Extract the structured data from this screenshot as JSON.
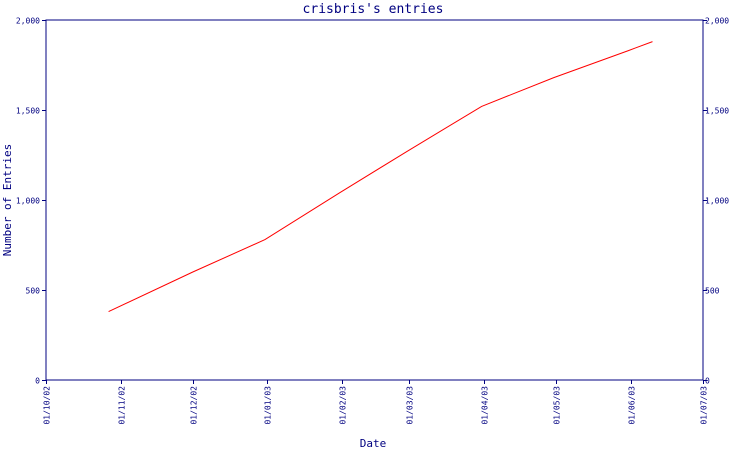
{
  "chart_data": {
    "type": "line",
    "title": "crisbris's entries",
    "xlabel": "Date",
    "ylabel": "Number of Entries",
    "x_tick_labels": [
      "01/10/02",
      "01/11/02",
      "01/12/02",
      "01/01/03",
      "01/02/03",
      "01/03/03",
      "01/04/03",
      "01/05/03",
      "01/06/03",
      "01/07/03"
    ],
    "y_tick_values": [
      0,
      500,
      1000,
      1500,
      2000
    ],
    "y_tick_labels": [
      "0",
      "500",
      "1,000",
      "1,500",
      "2,000"
    ],
    "xlim": [
      "2002-10-01",
      "2003-07-01"
    ],
    "ylim": [
      0,
      2000
    ],
    "grid": false,
    "series": [
      {
        "x": [
          "2002-10-27",
          "2002-12-01",
          "2002-12-31",
          "2003-01-31",
          "2003-02-28",
          "2003-03-31",
          "2003-04-30",
          "2003-05-31",
          "2003-06-10"
        ],
        "y": [
          380,
          600,
          780,
          1040,
          1270,
          1520,
          1680,
          1830,
          1880
        ]
      }
    ],
    "colors": {
      "axis": "#000080",
      "text": "#000080",
      "title": "#000080",
      "line": "#ff0000",
      "background": "#ffffff"
    }
  }
}
